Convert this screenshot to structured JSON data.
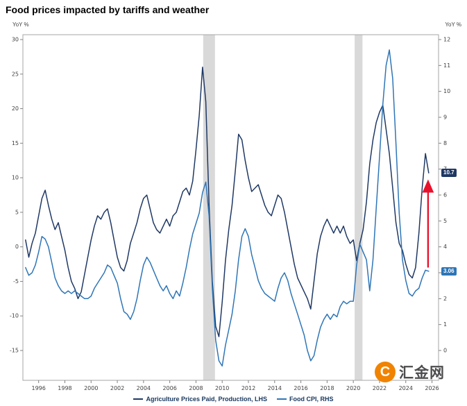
{
  "title": "Food prices impacted by tariffs and weather",
  "chart_data": {
    "type": "line",
    "title": "Food prices impacted by tariffs and weather",
    "x_start": 1995.0,
    "x_step": 0.25,
    "x_axis": {
      "ticks": [
        1996,
        1998,
        2000,
        2002,
        2004,
        2006,
        2008,
        2010,
        2012,
        2014,
        2016,
        2018,
        2020,
        2022,
        2024,
        2026
      ],
      "range": [
        1994.8,
        2026.5
      ]
    },
    "left_axis": {
      "label": "YoY %",
      "ticks": [
        30,
        25,
        20,
        15,
        10,
        5,
        0,
        -5,
        -10,
        -15
      ],
      "range": [
        -15,
        30
      ]
    },
    "right_axis": {
      "label": "YoY %",
      "ticks": [
        12,
        11,
        10,
        9,
        8,
        7,
        6,
        5,
        4,
        3,
        2,
        1,
        0
      ],
      "range": [
        0,
        12
      ]
    },
    "grid": false,
    "legend_position": "bottom",
    "band_color": "#d9d9d9",
    "shaded_bands": [
      {
        "from": 2008.55,
        "to": 2009.45
      },
      {
        "from": 2020.1,
        "to": 2020.7
      }
    ],
    "series": [
      {
        "name": "Agriculture Prices Paid, Production, LHS",
        "axis": "left",
        "color": "#1f3864",
        "values": [
          1.0,
          -1.5,
          0.5,
          2.0,
          4.5,
          7.0,
          8.2,
          6.0,
          4.0,
          2.5,
          3.5,
          1.5,
          -0.5,
          -3.0,
          -5.0,
          -6.0,
          -7.5,
          -6.5,
          -4.0,
          -1.5,
          1.0,
          3.0,
          4.5,
          4.0,
          5.0,
          5.5,
          3.5,
          1.0,
          -1.5,
          -3.0,
          -3.5,
          -2.0,
          0.5,
          2.0,
          3.5,
          5.5,
          7.0,
          7.5,
          5.5,
          3.5,
          2.5,
          2.0,
          3.0,
          4.0,
          3.0,
          4.5,
          5.0,
          6.5,
          8.0,
          8.5,
          7.5,
          9.5,
          14.0,
          19.0,
          26.0,
          21.0,
          6.0,
          -5.0,
          -11.5,
          -13.0,
          -8.0,
          -2.0,
          2.5,
          6.0,
          11.0,
          16.3,
          15.5,
          12.5,
          10.0,
          8.0,
          8.5,
          9.0,
          7.5,
          6.0,
          5.0,
          4.5,
          6.0,
          7.5,
          7.0,
          5.0,
          2.5,
          0.0,
          -2.5,
          -4.5,
          -5.5,
          -6.5,
          -7.5,
          -9.0,
          -5.0,
          -1.0,
          1.5,
          3.0,
          4.0,
          3.0,
          2.0,
          3.0,
          2.0,
          3.0,
          1.5,
          0.5,
          1.0,
          -2.0,
          0.5,
          2.5,
          6.5,
          12.0,
          15.5,
          18.0,
          19.5,
          20.5,
          17.0,
          13.5,
          8.5,
          3.5,
          0.5,
          -0.5,
          -2.5,
          -4.0,
          -4.5,
          -3.0,
          2.0,
          8.5,
          13.5,
          10.7
        ]
      },
      {
        "name": "Food CPI, RHS",
        "axis": "right",
        "color": "#2e75b6",
        "values": [
          3.2,
          2.9,
          3.0,
          3.3,
          3.8,
          4.4,
          4.3,
          4.0,
          3.4,
          2.8,
          2.5,
          2.3,
          2.2,
          2.3,
          2.2,
          2.3,
          2.2,
          2.1,
          2.0,
          2.0,
          2.1,
          2.4,
          2.6,
          2.8,
          3.0,
          3.3,
          3.2,
          2.9,
          2.6,
          2.0,
          1.5,
          1.4,
          1.2,
          1.5,
          2.0,
          2.7,
          3.3,
          3.6,
          3.4,
          3.1,
          2.8,
          2.5,
          2.3,
          2.5,
          2.2,
          2.0,
          2.3,
          2.1,
          2.6,
          3.2,
          3.9,
          4.5,
          4.9,
          5.3,
          6.1,
          6.5,
          5.2,
          2.4,
          0.4,
          -0.4,
          -0.6,
          0.2,
          0.8,
          1.4,
          2.3,
          3.5,
          4.4,
          4.7,
          4.4,
          3.7,
          3.2,
          2.7,
          2.4,
          2.2,
          2.1,
          2.0,
          1.9,
          2.4,
          2.8,
          3.0,
          2.7,
          2.2,
          1.8,
          1.4,
          1.0,
          0.6,
          0.0,
          -0.4,
          -0.2,
          0.4,
          0.9,
          1.2,
          1.4,
          1.2,
          1.4,
          1.3,
          1.7,
          1.9,
          1.8,
          1.9,
          1.9,
          3.3,
          4.1,
          3.8,
          3.5,
          2.3,
          3.5,
          5.5,
          7.5,
          9.5,
          11.0,
          11.6,
          10.5,
          8.0,
          5.3,
          3.5,
          2.7,
          2.2,
          2.1,
          2.3,
          2.4,
          2.8,
          3.1,
          3.06
        ]
      }
    ],
    "end_labels": [
      {
        "text": "10.7",
        "value": 10.7,
        "axis": "left",
        "color": "#1f3864"
      },
      {
        "text": "3.06",
        "value": 3.06,
        "axis": "right",
        "color": "#2e75b6"
      }
    ],
    "arrow": {
      "x": 2025.7,
      "from": -3.0,
      "to": 8.8,
      "axis": "left",
      "color": "#e8112d"
    }
  },
  "watermark": {
    "logo_letter": "C",
    "text": "汇金网",
    "logo_color": "#f08300"
  }
}
